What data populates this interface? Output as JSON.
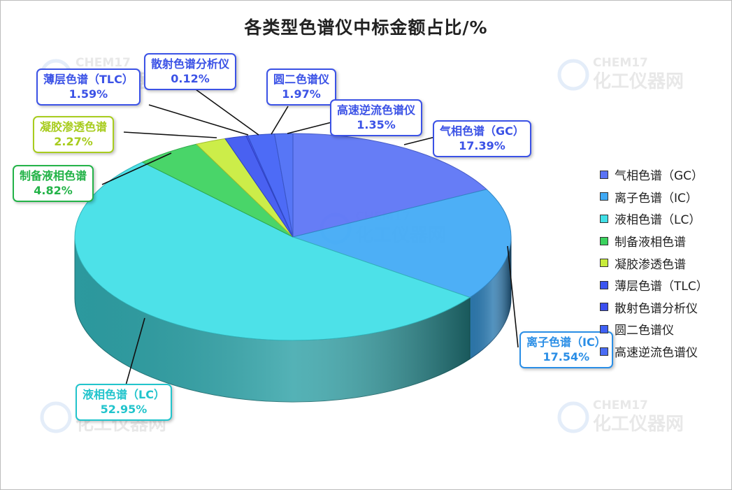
{
  "chart_data": {
    "type": "pie",
    "title": "各类型色谱仪中标金额占比/%",
    "slices": [
      {
        "name": "气相色谱（GC）",
        "label": "气相色谱（GC）",
        "value": 17.39,
        "color": "#5a73f5"
      },
      {
        "name": "离子色谱（IC）",
        "label": "离子色谱（IC）",
        "value": 17.54,
        "color": "#3fa9f5"
      },
      {
        "name": "液相色谱（LC）",
        "label": "液相色谱（LC）",
        "value": 52.95,
        "color": "#40dfe6"
      },
      {
        "name": "制备液相色谱",
        "label": "制备液相色谱",
        "value": 4.82,
        "color": "#3bd25e"
      },
      {
        "name": "凝胶渗透色谱",
        "label": "凝胶渗透色谱",
        "value": 2.27,
        "color": "#c8ec3b"
      },
      {
        "name": "薄层色谱（TLC）",
        "label": "薄层色谱（TLC）",
        "value": 1.59,
        "color": "#3b55f0"
      },
      {
        "name": "散射色谱分析仪",
        "label": "散射色谱分析仪",
        "value": 0.12,
        "color": "#3b4ff0"
      },
      {
        "name": "圆二色谱仪",
        "label": "圆二色谱仪",
        "value": 1.97,
        "color": "#3f60f5"
      },
      {
        "name": "高速逆流色谱仪",
        "label": "高速逆流色谱仪",
        "value": 1.35,
        "color": "#4a6cf5"
      }
    ],
    "label_colors": [
      "#3b52e6",
      "#2a8ee6",
      "#22c4cc",
      "#23b348",
      "#a8cc1e",
      "#3b52e6",
      "#3b52e6",
      "#3b52e6",
      "#3b52e6"
    ],
    "legend_position": "right"
  },
  "watermark": {
    "en": "CHEM17",
    "cn": "化工仪器网"
  }
}
